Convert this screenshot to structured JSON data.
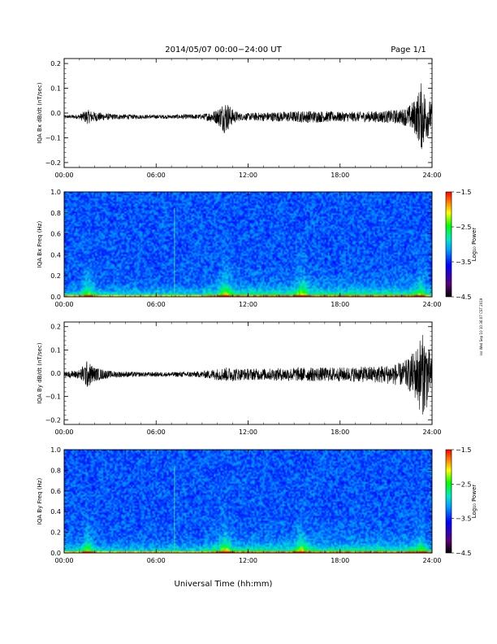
{
  "header": {
    "date_range": "2014/05/07  00:00−24:00 UT",
    "page": "Page 1/1"
  },
  "xaxis": {
    "label": "Universal Time (hh:mm)",
    "ticks": [
      "00:00",
      "06:00",
      "12:00",
      "18:00",
      "24:00"
    ],
    "range_hours": [
      0,
      24
    ]
  },
  "side_stamp": "ssr Wed Sep 10 10:36:07 CST 2019",
  "colors": {
    "background": "#ffffff",
    "trace": "#000000",
    "colorbar": [
      "#000000",
      "#5a0078",
      "#0000ff",
      "#00a0ff",
      "#00e8c8",
      "#00ff00",
      "#ffff00",
      "#ff8000",
      "#ff0000"
    ]
  },
  "chart_data": [
    {
      "type": "line",
      "ylabel": "IQA Bx dB/dt (nT/sec)",
      "ylim": [
        -0.22,
        0.22
      ],
      "yticks": [
        "0.2",
        "0.1",
        "0.0",
        "−0.1",
        "−0.2"
      ],
      "ytick_values": [
        0.2,
        0.1,
        0.0,
        -0.1,
        -0.2
      ],
      "x_hours": [
        0,
        1,
        1.5,
        2,
        3,
        4,
        5,
        6,
        7,
        8,
        9,
        10,
        10.5,
        11,
        11.5,
        12,
        13,
        14,
        15,
        16,
        17,
        18,
        19,
        20,
        21,
        22,
        22.5,
        23,
        23.3,
        23.6,
        24
      ],
      "envelope": [
        0.006,
        0.01,
        0.03,
        0.02,
        0.012,
        0.01,
        0.008,
        0.008,
        0.008,
        0.01,
        0.01,
        0.03,
        0.07,
        0.03,
        0.015,
        0.015,
        0.018,
        0.02,
        0.022,
        0.025,
        0.022,
        0.02,
        0.02,
        0.022,
        0.025,
        0.03,
        0.045,
        0.08,
        0.14,
        0.1,
        0.05
      ],
      "baseline": -0.015,
      "grid": false,
      "legend": "none"
    },
    {
      "type": "heatmap",
      "ylabel": "IQA Bx Freq (Hz)",
      "ylim": [
        0.0,
        1.0
      ],
      "yticks": [
        "1.0",
        "0.8",
        "0.6",
        "0.4",
        "0.2",
        "0.0"
      ],
      "ytick_values": [
        1.0,
        0.8,
        0.6,
        0.4,
        0.2,
        0.0
      ],
      "colorbar_label": "Log₁₀ Power",
      "colorbar_range": [
        -4.5,
        -1.5
      ],
      "colorbar_ticks": [
        "−1.5",
        "−2.5",
        "−3.5",
        "−4.5"
      ],
      "colorbar_tick_values": [
        -1.5,
        -2.5,
        -3.5,
        -4.5
      ],
      "low_freq_boost_hours": [
        1.5,
        10.5,
        15.5,
        23.3
      ],
      "vertical_lines_hours": [
        7.2
      ],
      "legend": "right"
    },
    {
      "type": "line",
      "ylabel": "IQA By dB/dt (nT/sec)",
      "ylim": [
        -0.22,
        0.22
      ],
      "yticks": [
        "0.2",
        "0.1",
        "0.0",
        "−0.1",
        "−0.2"
      ],
      "ytick_values": [
        0.2,
        0.1,
        0.0,
        -0.1,
        -0.2
      ],
      "x_hours": [
        0,
        1,
        1.5,
        2,
        3,
        4,
        5,
        6,
        7,
        8,
        9,
        10,
        10.5,
        11,
        11.5,
        12,
        13,
        14,
        15,
        16,
        17,
        18,
        19,
        20,
        21,
        22,
        22.5,
        23,
        23.3,
        23.6,
        24
      ],
      "envelope": [
        0.01,
        0.02,
        0.06,
        0.03,
        0.015,
        0.012,
        0.01,
        0.01,
        0.01,
        0.012,
        0.014,
        0.025,
        0.03,
        0.03,
        0.025,
        0.025,
        0.025,
        0.027,
        0.03,
        0.03,
        0.03,
        0.03,
        0.032,
        0.035,
        0.04,
        0.05,
        0.07,
        0.12,
        0.18,
        0.16,
        0.06
      ],
      "baseline": -0.005,
      "grid": false,
      "legend": "none"
    },
    {
      "type": "heatmap",
      "ylabel": "IQA By Freq (Hz)",
      "ylim": [
        0.0,
        1.0
      ],
      "yticks": [
        "1.0",
        "0.8",
        "0.6",
        "0.4",
        "0.2",
        "0.0"
      ],
      "ytick_values": [
        1.0,
        0.8,
        0.6,
        0.4,
        0.2,
        0.0
      ],
      "colorbar_label": "Log₁₀ Power",
      "colorbar_range": [
        -4.5,
        -1.5
      ],
      "colorbar_ticks": [
        "−1.5",
        "−2.5",
        "−3.5",
        "−4.5"
      ],
      "colorbar_tick_values": [
        -1.5,
        -2.5,
        -3.5,
        -4.5
      ],
      "low_freq_boost_hours": [
        1.5,
        10.5,
        15.5,
        23.3
      ],
      "vertical_lines_hours": [
        7.2
      ],
      "legend": "right"
    }
  ]
}
